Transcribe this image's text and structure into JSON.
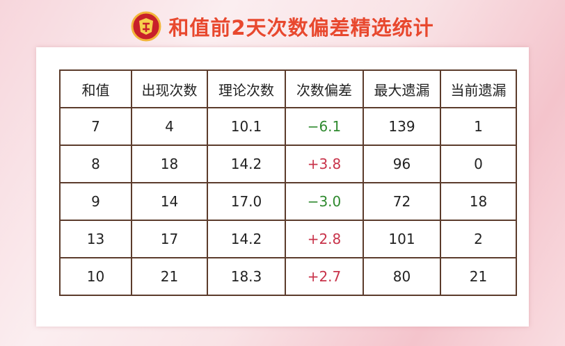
{
  "header": {
    "title": "和值前2天次数偏差精选统计"
  },
  "table": {
    "headers": [
      "和值",
      "出现次数",
      "理论次数",
      "次数偏差",
      "最大遗漏",
      "当前遗漏"
    ],
    "rows": [
      [
        "7",
        "4",
        "10.1",
        "−6.1",
        "139",
        "1"
      ],
      [
        "8",
        "18",
        "14.2",
        "+3.8",
        "96",
        "0"
      ],
      [
        "9",
        "14",
        "17.0",
        "−3.0",
        "72",
        "18"
      ],
      [
        "13",
        "17",
        "14.2",
        "+2.8",
        "101",
        "2"
      ],
      [
        "10",
        "21",
        "18.3",
        "+2.7",
        "80",
        "21"
      ]
    ]
  }
}
